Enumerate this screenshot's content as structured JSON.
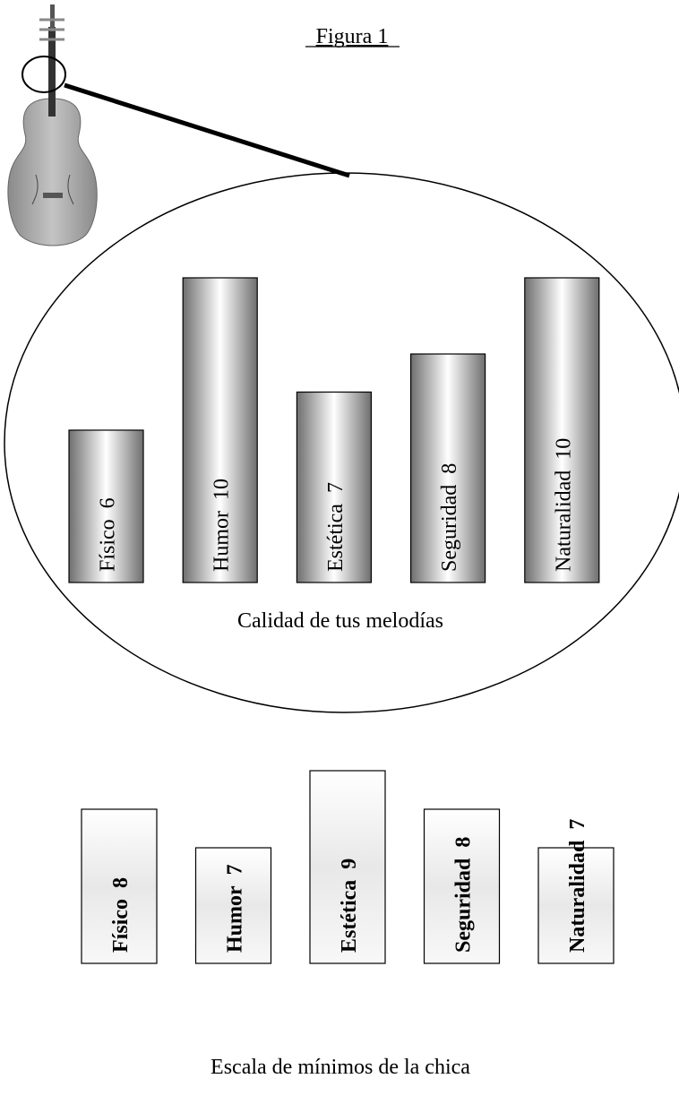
{
  "figure_title": "Figura 1",
  "chart_data": [
    {
      "type": "bar",
      "title": "Calidad de tus melodías",
      "style": "shaded",
      "categories": [
        "Físico",
        "Humor",
        "Estética",
        "Seguridad",
        "Naturalidad"
      ],
      "values": [
        6,
        10,
        7,
        8,
        10
      ],
      "ylim": [
        2,
        10
      ]
    },
    {
      "type": "bar",
      "title": "Escala de mínimos de la chica",
      "style": "light",
      "categories": [
        "Físico",
        "Humor",
        "Estética",
        "Seguridad",
        "Naturalidad"
      ],
      "values": [
        8,
        7,
        9,
        8,
        7
      ],
      "ylim": [
        4,
        9
      ]
    }
  ]
}
